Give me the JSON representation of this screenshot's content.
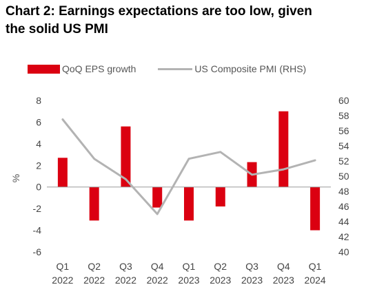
{
  "chart_data": {
    "type": "bar",
    "title_line1": "Chart 2: Earnings expectations are too low, given",
    "title_line2": "the solid US PMI",
    "categories": [
      [
        "Q1",
        "2022"
      ],
      [
        "Q2",
        "2022"
      ],
      [
        "Q3",
        "2022"
      ],
      [
        "Q4",
        "2022"
      ],
      [
        "Q1",
        "2023"
      ],
      [
        "Q2",
        "2023"
      ],
      [
        "Q3",
        "2023"
      ],
      [
        "Q4",
        "2023"
      ],
      [
        "Q1",
        "2024"
      ]
    ],
    "series": [
      {
        "name": "QoQ EPS growth",
        "type": "bar",
        "axis": "left",
        "color": "#db0011",
        "values": [
          2.7,
          -3.1,
          5.6,
          -1.9,
          -3.1,
          -1.8,
          2.3,
          7.0,
          -4.0
        ]
      },
      {
        "name": "US Composite PMI (RHS)",
        "type": "line",
        "axis": "right",
        "color": "#b3b3b3",
        "values": [
          57.5,
          52.3,
          49.6,
          45.0,
          52.3,
          53.2,
          50.2,
          50.9,
          52.1
        ]
      }
    ],
    "y_left": {
      "label": "%",
      "ylim": [
        -6,
        8
      ],
      "ticks": [
        -6,
        -4,
        -2,
        0,
        2,
        4,
        6,
        8
      ]
    },
    "y_right": {
      "label": "",
      "ylim": [
        40,
        60
      ],
      "ticks": [
        40,
        42,
        44,
        46,
        48,
        50,
        52,
        54,
        56,
        58,
        60
      ]
    },
    "grid": false,
    "legend_position": "top"
  }
}
